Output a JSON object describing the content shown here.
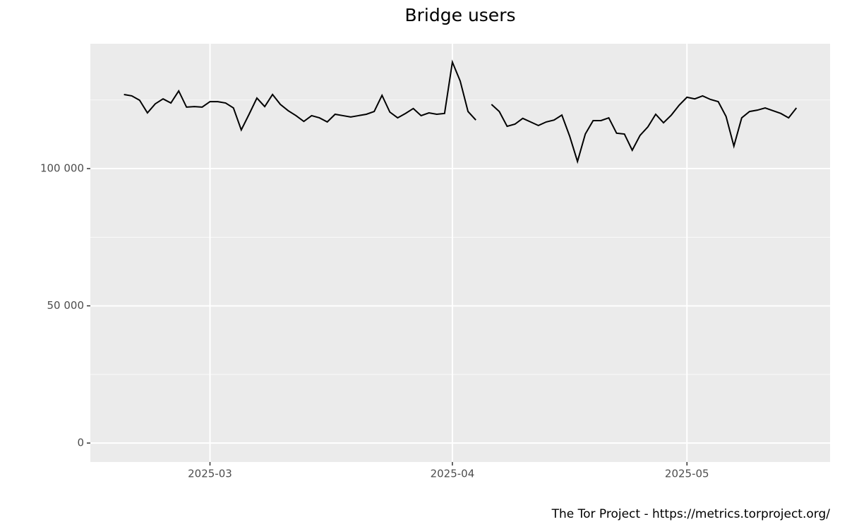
{
  "chart_data": {
    "type": "line",
    "title": "Bridge users",
    "caption": "The Tor Project - https://metrics.torproject.org/",
    "x": [
      -11,
      -10,
      -9,
      -8,
      -7,
      -6,
      -5,
      -4,
      -3,
      -2,
      -1,
      0,
      1,
      2,
      3,
      4,
      5,
      6,
      7,
      8,
      9,
      10,
      11,
      12,
      13,
      14,
      15,
      16,
      17,
      18,
      19,
      20,
      21,
      22,
      23,
      24,
      25,
      26,
      27,
      28,
      29,
      30,
      31,
      32,
      33,
      34,
      35,
      36,
      37,
      38,
      39,
      40,
      41,
      42,
      43,
      44,
      45,
      46,
      47,
      48,
      49,
      50,
      51,
      52,
      53,
      54,
      55,
      56,
      57,
      58,
      59,
      60,
      61,
      62,
      63,
      64,
      65,
      66,
      67,
      68,
      69,
      70,
      71,
      72,
      73,
      74,
      75
    ],
    "series": [
      {
        "name": "Bridge users",
        "color": "#000000",
        "values": [
          127000,
          126500,
          124900,
          120300,
          123600,
          125400,
          123900,
          128300,
          122400,
          122600,
          122400,
          124400,
          124400,
          123900,
          122100,
          114100,
          119800,
          125700,
          122600,
          127000,
          123400,
          121100,
          119300,
          117200,
          119300,
          118500,
          117000,
          119800,
          119300,
          118800,
          119300,
          119800,
          120800,
          126700,
          120600,
          118500,
          120100,
          121900,
          119300,
          120300,
          119800,
          120100,
          138800,
          131900,
          120800,
          117700,
          null,
          123400,
          120800,
          115400,
          116200,
          118300,
          117000,
          115700,
          117000,
          117700,
          119500,
          111800,
          102600,
          112600,
          117500,
          117500,
          118500,
          112900,
          112600,
          106700,
          112100,
          115200,
          119800,
          116700,
          119500,
          123100,
          126000,
          125400,
          126500,
          125200,
          124400,
          119000,
          108200,
          118500,
          120800,
          121300,
          122100,
          121100,
          120100,
          118500,
          122100
        ]
      }
    ],
    "xlim": [
      -15.3,
      79.3
    ],
    "xticks": [
      {
        "value": 0,
        "label": "2025-03"
      },
      {
        "value": 31,
        "label": "2025-04"
      },
      {
        "value": 61,
        "label": "2025-05"
      }
    ],
    "ylim": [
      -6900,
      145500
    ],
    "yticks": [
      0,
      {
        "value": 50000,
        "label": "50 000"
      },
      {
        "value": 100000,
        "label": "100 000"
      }
    ],
    "yminor": [
      25000,
      75000,
      125000
    ],
    "grid": true
  }
}
